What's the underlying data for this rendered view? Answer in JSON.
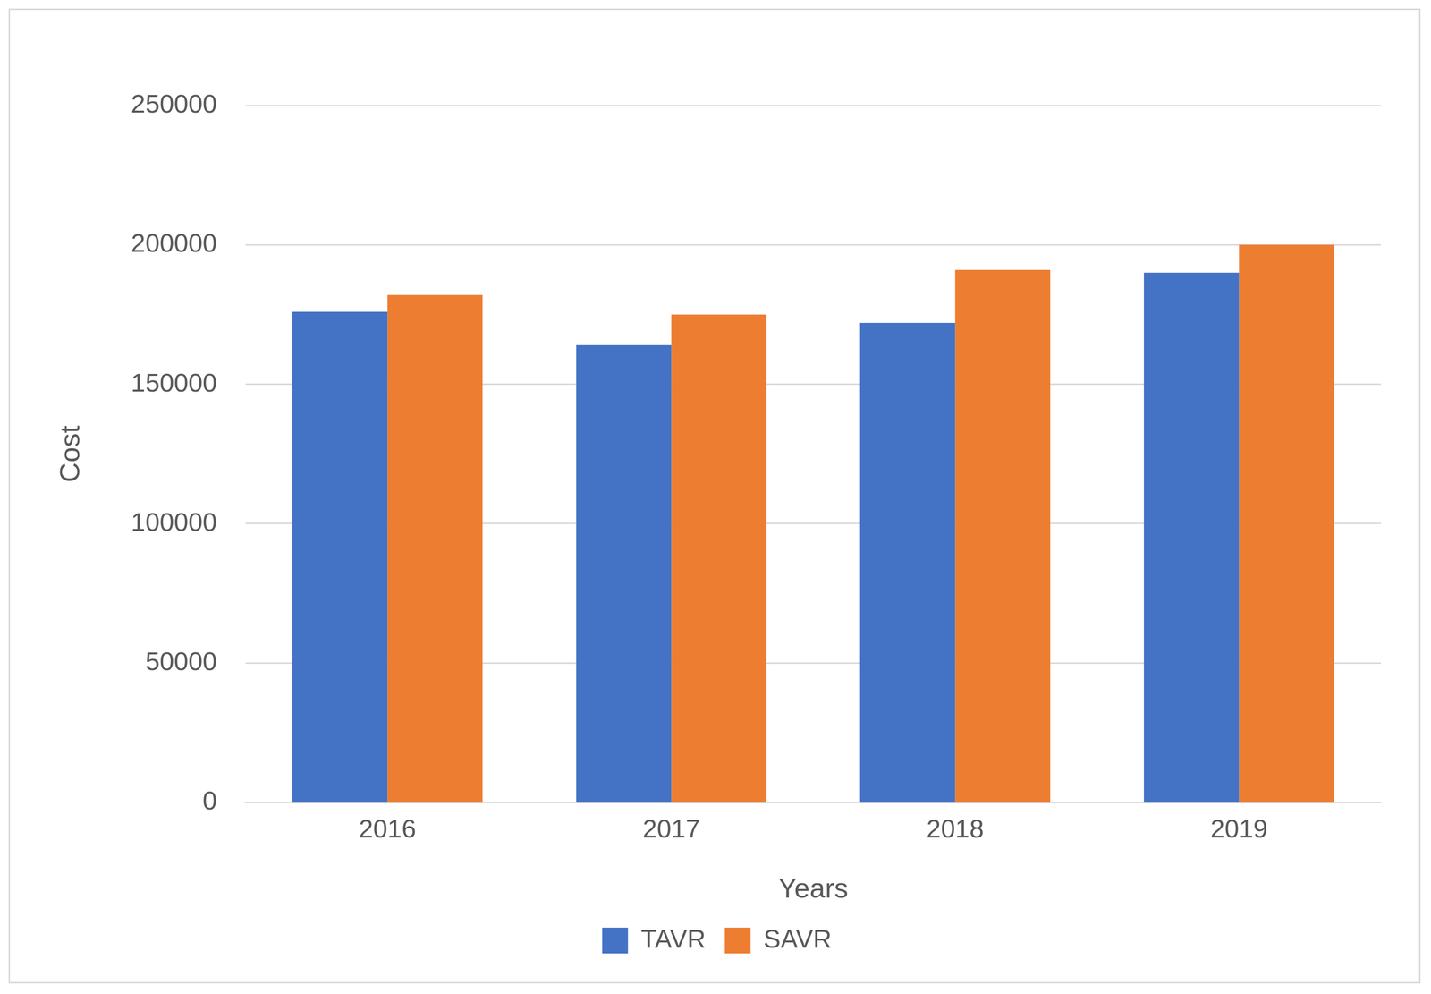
{
  "chart_data": {
    "type": "bar",
    "x_label": "Years",
    "y_label": "Cost",
    "categories": [
      "2016",
      "2017",
      "2018",
      "2019"
    ],
    "series": [
      {
        "name": "TAVR",
        "color": "#4472c4",
        "values": [
          176000,
          164000,
          172000,
          190000
        ]
      },
      {
        "name": "SAVR",
        "color": "#ed7d31",
        "values": [
          182000,
          175000,
          191000,
          200000
        ]
      }
    ],
    "ylim": [
      0,
      250000
    ],
    "yticks": [
      0,
      50000,
      100000,
      150000,
      200000,
      250000
    ],
    "grid": true,
    "legend": "bottom"
  }
}
